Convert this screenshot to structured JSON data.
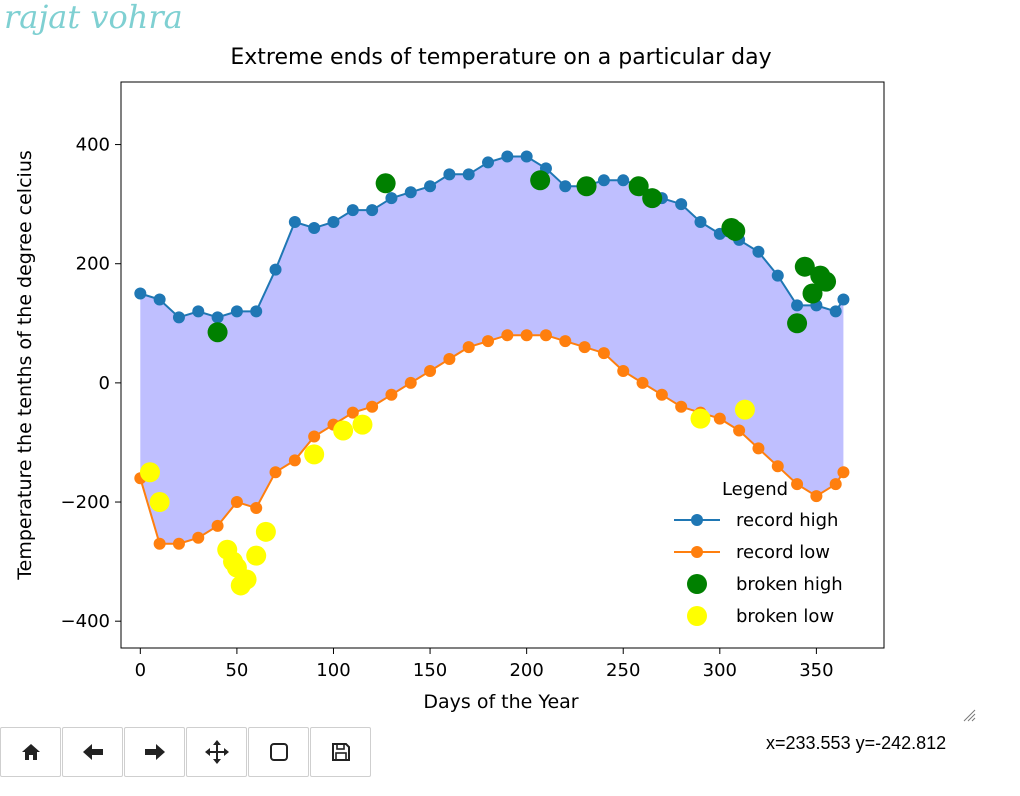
{
  "watermark": "rajat vohra",
  "status": {
    "coords": "x=233.553 y=-242.812"
  },
  "toolbar": {
    "buttons": [
      {
        "name": "home",
        "icon": "home-icon"
      },
      {
        "name": "back",
        "icon": "arrow-left-icon"
      },
      {
        "name": "forward",
        "icon": "arrow-right-icon"
      },
      {
        "name": "pan",
        "icon": "move-icon"
      },
      {
        "name": "zoom",
        "icon": "zoom-rect-icon"
      },
      {
        "name": "save",
        "icon": "save-icon"
      }
    ]
  },
  "chart_data": {
    "type": "line",
    "title": "Extreme ends of temperature on a particular day",
    "xlabel": "Days of the Year",
    "ylabel": "Temperature the tenths of the degree celcius",
    "xlim": [
      -10,
      385
    ],
    "ylim": [
      -445,
      505
    ],
    "xticks": [
      0,
      50,
      100,
      150,
      200,
      250,
      300,
      350
    ],
    "yticks": [
      -400,
      -200,
      0,
      200,
      400
    ],
    "grid": false,
    "fill_between": {
      "color": "#bfbfff",
      "between": [
        "record high",
        "record low"
      ]
    },
    "legend": {
      "title": "Legend",
      "placement": "lower-right",
      "entries": [
        "record high",
        "record low",
        "broken high",
        "broken low"
      ]
    },
    "series": [
      {
        "name": "record high",
        "kind": "line-marker",
        "color": "#1f77b4",
        "x": [
          0,
          10,
          20,
          30,
          40,
          50,
          60,
          70,
          80,
          90,
          100,
          110,
          120,
          130,
          140,
          150,
          160,
          170,
          180,
          190,
          200,
          210,
          220,
          230,
          240,
          250,
          260,
          270,
          280,
          290,
          300,
          310,
          320,
          330,
          340,
          350,
          360,
          364
        ],
        "y": [
          150,
          140,
          110,
          120,
          110,
          120,
          120,
          190,
          270,
          260,
          270,
          290,
          290,
          310,
          320,
          330,
          350,
          350,
          370,
          380,
          380,
          360,
          330,
          330,
          340,
          340,
          330,
          310,
          300,
          270,
          250,
          240,
          220,
          180,
          130,
          130,
          120,
          140
        ]
      },
      {
        "name": "record low",
        "kind": "line-marker",
        "color": "#ff7f0e",
        "x": [
          0,
          10,
          20,
          30,
          40,
          50,
          60,
          70,
          80,
          90,
          100,
          110,
          120,
          130,
          140,
          150,
          160,
          170,
          180,
          190,
          200,
          210,
          220,
          230,
          240,
          250,
          260,
          270,
          280,
          290,
          300,
          310,
          320,
          330,
          340,
          350,
          360,
          364
        ],
        "y": [
          -160,
          -270,
          -270,
          -260,
          -240,
          -200,
          -210,
          -150,
          -130,
          -90,
          -70,
          -50,
          -40,
          -20,
          0,
          20,
          40,
          60,
          70,
          80,
          80,
          80,
          70,
          60,
          50,
          20,
          0,
          -20,
          -40,
          -50,
          -60,
          -80,
          -110,
          -140,
          -170,
          -190,
          -170,
          -150
        ]
      },
      {
        "name": "broken high",
        "kind": "scatter",
        "color": "#008000",
        "x": [
          40,
          127,
          207,
          231,
          258,
          265,
          306,
          308,
          340,
          344,
          348,
          352,
          355
        ],
        "y": [
          85,
          335,
          340,
          330,
          330,
          310,
          260,
          255,
          100,
          195,
          150,
          180,
          170
        ]
      },
      {
        "name": "broken low",
        "kind": "scatter",
        "color": "#ffff00",
        "x": [
          5,
          10,
          45,
          48,
          50,
          52,
          55,
          60,
          65,
          90,
          105,
          115,
          290,
          313
        ],
        "y": [
          -150,
          -200,
          -280,
          -300,
          -310,
          -340,
          -330,
          -290,
          -250,
          -120,
          -80,
          -70,
          -60,
          -45
        ]
      }
    ]
  }
}
